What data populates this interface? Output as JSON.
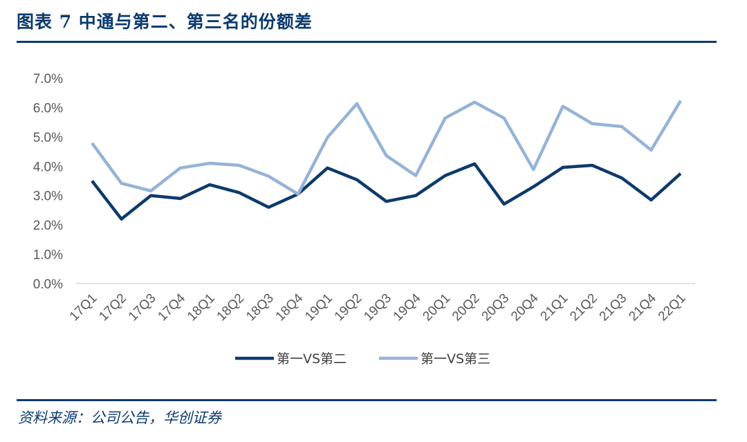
{
  "header": {
    "title": "图表 7   中通与第二、第三名的份额差"
  },
  "footer": {
    "source": "资料来源：公司公告，华创证券"
  },
  "chart_data": {
    "type": "line",
    "title": "",
    "xlabel": "",
    "ylabel": "",
    "ylim": [
      0,
      7
    ],
    "yticks": [
      "0.0%",
      "1.0%",
      "2.0%",
      "3.0%",
      "4.0%",
      "5.0%",
      "6.0%",
      "7.0%"
    ],
    "grid": false,
    "legend": "bottom",
    "categories": [
      "17Q1",
      "17Q2",
      "17Q3",
      "17Q4",
      "18Q1",
      "18Q2",
      "18Q3",
      "18Q4",
      "19Q1",
      "19Q2",
      "19Q3",
      "19Q4",
      "20Q1",
      "20Q2",
      "20Q3",
      "20Q4",
      "21Q1",
      "21Q2",
      "21Q3",
      "21Q4",
      "22Q1"
    ],
    "series": [
      {
        "name": "第一VS第二",
        "color": "#0d3a6b",
        "values": [
          3.5,
          2.2,
          3.0,
          2.9,
          3.37,
          3.1,
          2.6,
          3.05,
          3.94,
          3.54,
          2.8,
          3.0,
          3.68,
          4.08,
          2.71,
          3.3,
          3.96,
          4.03,
          3.6,
          2.85,
          3.75
        ]
      },
      {
        "name": "第一VS第三",
        "color": "#95b3d7",
        "values": [
          4.79,
          3.42,
          3.16,
          3.94,
          4.1,
          4.03,
          3.66,
          3.05,
          4.98,
          6.13,
          4.36,
          3.68,
          5.64,
          6.18,
          5.64,
          3.89,
          6.04,
          5.45,
          5.35,
          4.55,
          6.23
        ]
      }
    ]
  }
}
